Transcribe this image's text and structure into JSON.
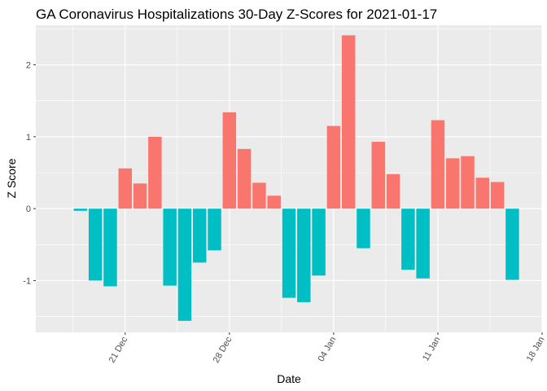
{
  "chart_data": {
    "type": "bar",
    "title": "GA Coronavirus Hospitalizations 30-Day Z-Scores for 2021-01-17",
    "xlabel": "Date",
    "ylabel": "Z Score",
    "ylim": [
      -1.72,
      2.55
    ],
    "xlim": [
      "2020-12-15",
      "2021-01-18"
    ],
    "grid": true,
    "legend": "none",
    "colors": {
      "positive": "#F8766D",
      "negative": "#00BFC4",
      "panel": "#EBEBEB",
      "grid": "#FFFFFF"
    },
    "y_ticks": [
      {
        "value": -1,
        "label": "-1"
      },
      {
        "value": 0,
        "label": "0"
      },
      {
        "value": 1,
        "label": "1"
      },
      {
        "value": 2,
        "label": "2"
      }
    ],
    "x_ticks": [
      {
        "date": "2020-12-21",
        "label": "21 Dec"
      },
      {
        "date": "2020-12-28",
        "label": "28 Dec"
      },
      {
        "date": "2021-01-04",
        "label": "04 Jan"
      },
      {
        "date": "2021-01-11",
        "label": "11 Jan"
      },
      {
        "date": "2021-01-18",
        "label": "18 Jan"
      }
    ],
    "x": [
      "2020-12-18",
      "2020-12-19",
      "2020-12-20",
      "2020-12-21",
      "2020-12-22",
      "2020-12-23",
      "2020-12-24",
      "2020-12-25",
      "2020-12-26",
      "2020-12-27",
      "2020-12-28",
      "2020-12-29",
      "2020-12-30",
      "2020-12-31",
      "2021-01-01",
      "2021-01-02",
      "2021-01-03",
      "2021-01-04",
      "2021-01-05",
      "2021-01-06",
      "2021-01-07",
      "2021-01-08",
      "2021-01-09",
      "2021-01-10",
      "2021-01-11",
      "2021-01-12",
      "2021-01-13",
      "2021-01-14",
      "2021-01-15",
      "2021-01-16",
      "2021-01-17"
    ],
    "values": [
      -0.03,
      -1.0,
      -1.08,
      0.56,
      0.35,
      1.0,
      -1.07,
      -1.56,
      -0.75,
      -0.58,
      1.34,
      0.83,
      0.36,
      0.18,
      -1.24,
      -1.3,
      -0.93,
      1.15,
      2.41,
      -0.55,
      0.93,
      0.48,
      -0.85,
      -0.97,
      1.23,
      0.7,
      0.73,
      0.43,
      0.37,
      -0.99,
      null
    ]
  }
}
